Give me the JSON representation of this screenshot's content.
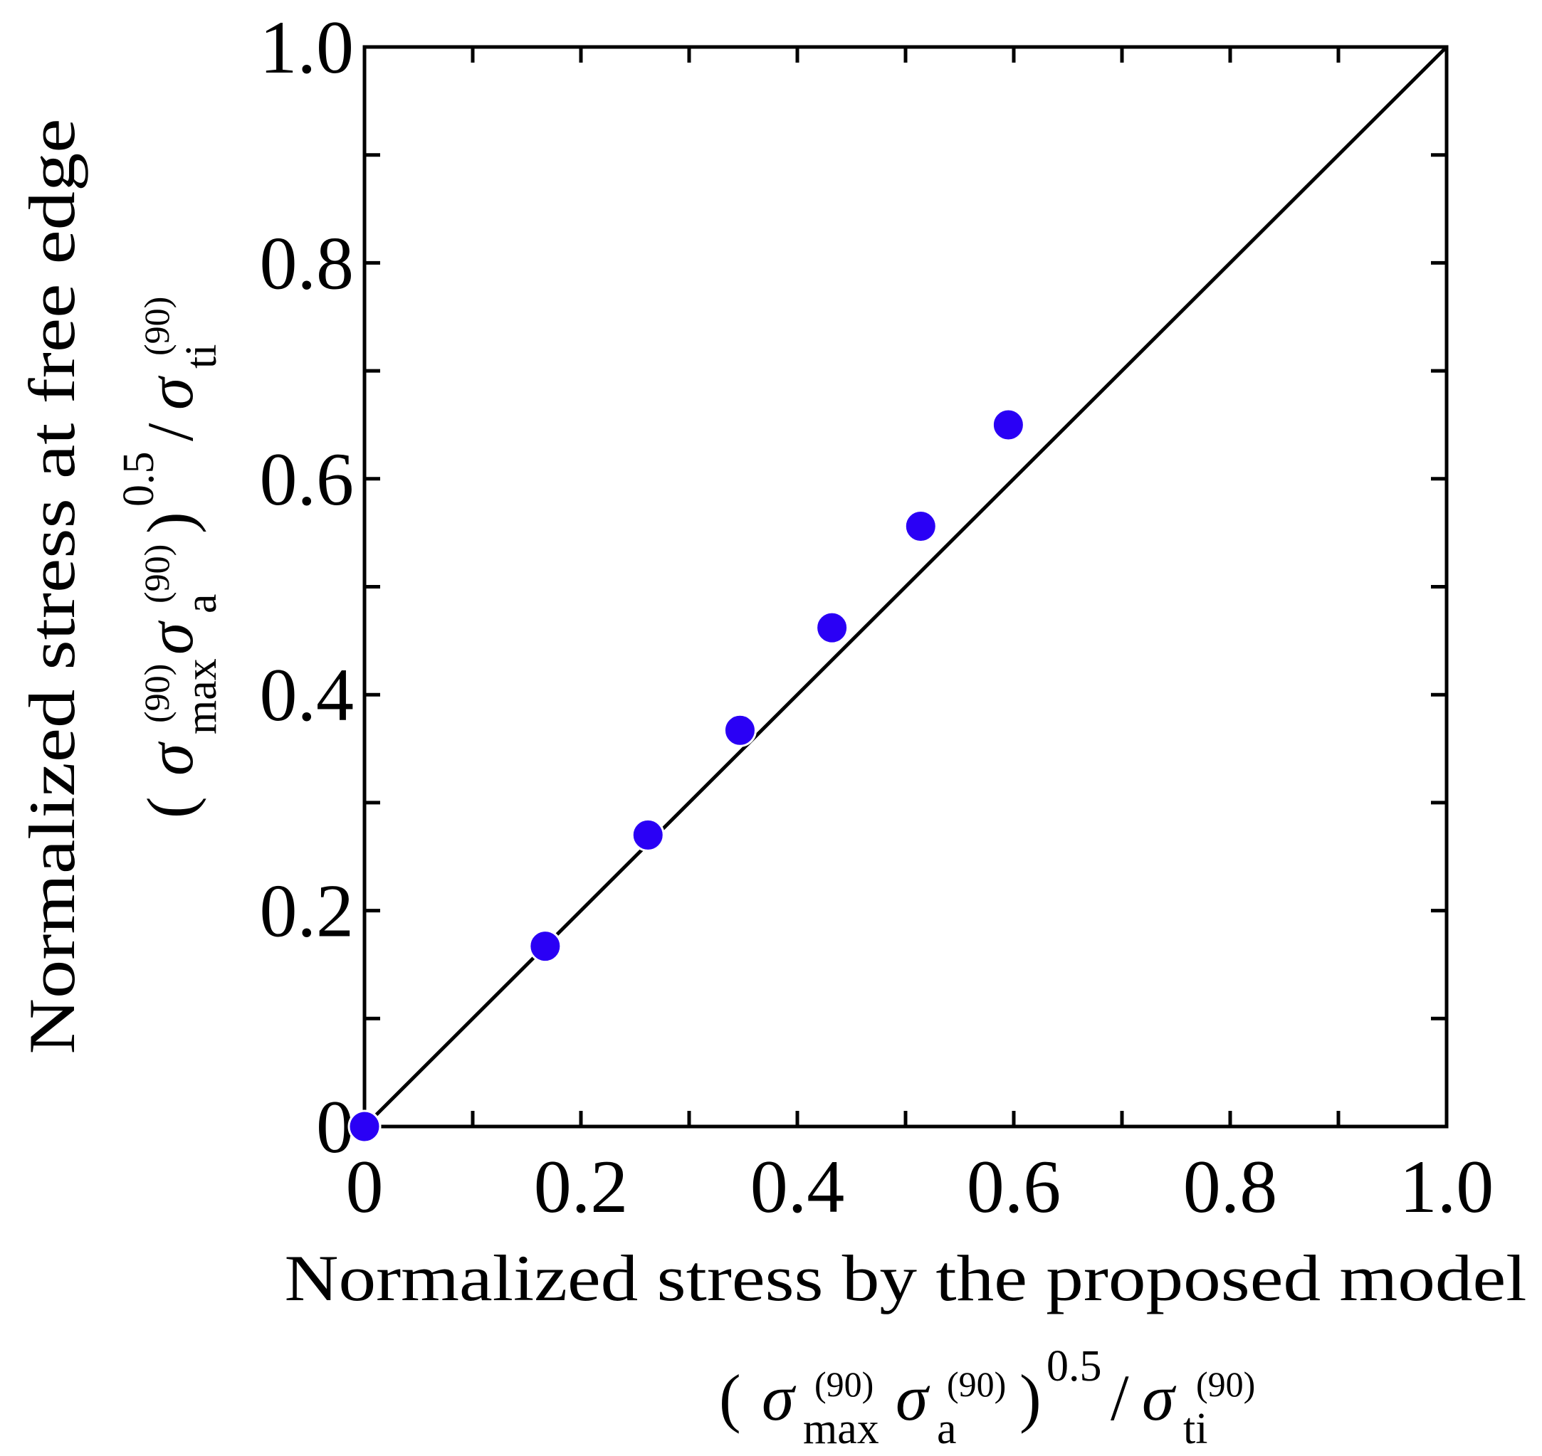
{
  "chart_data": {
    "type": "scatter",
    "title": "",
    "xlabel": "Normalized stress by the proposed model",
    "ylabel": "Normalized stress at free edge",
    "xlim": [
      0,
      1.0
    ],
    "ylim": [
      0,
      1.0
    ],
    "x_ticks": [
      0,
      0.2,
      0.4,
      0.6,
      0.8,
      1.0
    ],
    "y_ticks": [
      0,
      0.2,
      0.4,
      0.6,
      0.8,
      1.0
    ],
    "x_tick_labels": [
      "0",
      "0.2",
      "0.4",
      "0.6",
      "0.8",
      "1.0"
    ],
    "y_tick_labels": [
      "0",
      "0.2",
      "0.4",
      "0.6",
      "0.8",
      "1.0"
    ],
    "minor_step": 0.1,
    "grid": false,
    "series": [
      {
        "name": "data",
        "color": "#2a00f5",
        "x": [
          0.0,
          0.167,
          0.262,
          0.347,
          0.432,
          0.514,
          0.595
        ],
        "y": [
          0.0,
          0.167,
          0.27,
          0.367,
          0.462,
          0.556,
          0.65
        ]
      }
    ],
    "reference_line": {
      "name": "y = x",
      "x": [
        0,
        1.0
      ],
      "y": [
        0,
        1.0
      ],
      "color": "#000000"
    },
    "formula": {
      "open": "(",
      "sigma": "σ",
      "sup90": "(90)",
      "sub_max": "max",
      "sub_a": "a",
      "close": ")",
      "exponent": "0.5",
      "slash": "/",
      "sub_ti": "ti"
    }
  }
}
